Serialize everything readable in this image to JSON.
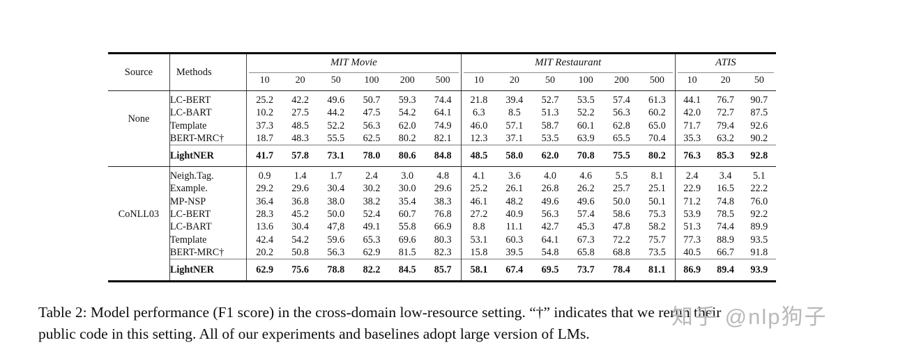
{
  "table": {
    "header": {
      "source_label": "Source",
      "methods_label": "Methods",
      "groups": [
        {
          "label": "MIT Movie",
          "cols": [
            "10",
            "20",
            "50",
            "100",
            "200",
            "500"
          ]
        },
        {
          "label": "MIT Restaurant",
          "cols": [
            "10",
            "20",
            "50",
            "100",
            "200",
            "500"
          ]
        },
        {
          "label": "ATIS",
          "cols": [
            "10",
            "20",
            "50"
          ]
        }
      ]
    },
    "sections": [
      {
        "source": "None",
        "rows": [
          {
            "method": "LC-BERT",
            "values": [
              "25.2",
              "42.2",
              "49.6",
              "50.7",
              "59.3",
              "74.4",
              "21.8",
              "39.4",
              "52.7",
              "53.5",
              "57.4",
              "61.3",
              "44.1",
              "76.7",
              "90.7"
            ]
          },
          {
            "method": "LC-BART",
            "values": [
              "10.2",
              "27.5",
              "44.2",
              "47.5",
              "54.2",
              "64.1",
              "6.3",
              "8.5",
              "51.3",
              "52.2",
              "56.3",
              "60.2",
              "42.0",
              "72.7",
              "87.5"
            ]
          },
          {
            "method": "Template",
            "values": [
              "37.3",
              "48.5",
              "52.2",
              "56.3",
              "62.0",
              "74.9",
              "46.0",
              "57.1",
              "58.7",
              "60.1",
              "62.8",
              "65.0",
              "71.7",
              "79.4",
              "92.6"
            ]
          },
          {
            "method": "BERT-MRC†",
            "values": [
              "18.7",
              "48.3",
              "55.5",
              "62.5",
              "80.2",
              "82.1",
              "12.3",
              "37.1",
              "53.5",
              "63.9",
              "65.5",
              "70.4",
              "35.3",
              "63.2",
              "90.2"
            ]
          }
        ],
        "highlight": {
          "method": "LightNER",
          "values": [
            "41.7",
            "57.8",
            "73.1",
            "78.0",
            "80.6",
            "84.8",
            "48.5",
            "58.0",
            "62.0",
            "70.8",
            "75.5",
            "80.2",
            "76.3",
            "85.3",
            "92.8"
          ]
        }
      },
      {
        "source": "CoNLL03",
        "rows": [
          {
            "method": "Neigh.Tag.",
            "values": [
              "0.9",
              "1.4",
              "1.7",
              "2.4",
              "3.0",
              "4.8",
              "4.1",
              "3.6",
              "4.0",
              "4.6",
              "5.5",
              "8.1",
              "2.4",
              "3.4",
              "5.1"
            ]
          },
          {
            "method": "Example.",
            "values": [
              "29.2",
              "29.6",
              "30.4",
              "30.2",
              "30.0",
              "29.6",
              "25.2",
              "26.1",
              "26.8",
              "26.2",
              "25.7",
              "25.1",
              "22.9",
              "16.5",
              "22.2"
            ]
          },
          {
            "method": "MP-NSP",
            "values": [
              "36.4",
              "36.8",
              "38.0",
              "38.2",
              "35.4",
              "38.3",
              "46.1",
              "48.2",
              "49.6",
              "49.6",
              "50.0",
              "50.1",
              "71.2",
              "74.8",
              "76.0"
            ]
          },
          {
            "method": "LC-BERT",
            "values": [
              "28.3",
              "45.2",
              "50.0",
              "52.4",
              "60.7",
              "76.8",
              "27.2",
              "40.9",
              "56.3",
              "57.4",
              "58.6",
              "75.3",
              "53.9",
              "78.5",
              "92.2"
            ]
          },
          {
            "method": "LC-BART",
            "values": [
              "13.6",
              "30.4",
              "47,8",
              "49.1",
              "55.8",
              "66.9",
              "8.8",
              "11.1",
              "42.7",
              "45.3",
              "47.8",
              "58.2",
              "51.3",
              "74.4",
              "89.9"
            ]
          },
          {
            "method": "Template",
            "values": [
              "42.4",
              "54.2",
              "59.6",
              "65.3",
              "69.6",
              "80.3",
              "53.1",
              "60.3",
              "64.1",
              "67.3",
              "72.2",
              "75.7",
              "77.3",
              "88.9",
              "93.5"
            ]
          },
          {
            "method": "BERT-MRC†",
            "values": [
              "20.2",
              "50.8",
              "56.3",
              "62.9",
              "81.5",
              "82.3",
              "15.8",
              "39.5",
              "54.8",
              "65.8",
              "68.8",
              "73.5",
              "40.5",
              "66.7",
              "91.8"
            ]
          }
        ],
        "highlight": {
          "method": "LightNER",
          "values": [
            "62.9",
            "75.6",
            "78.8",
            "82.2",
            "84.5",
            "85.7",
            "58.1",
            "67.4",
            "69.5",
            "73.7",
            "78.4",
            "81.1",
            "86.9",
            "89.4",
            "93.9"
          ]
        }
      }
    ]
  },
  "caption": {
    "line1": "Table 2:  Model performance (F1 score) in the cross-domain low-resource setting. “†” indicates that we rerun their",
    "line2": "public code in this setting. All of our experiments and baselines adopt large version of LMs."
  },
  "watermark": "知乎 @nlp狗子"
}
